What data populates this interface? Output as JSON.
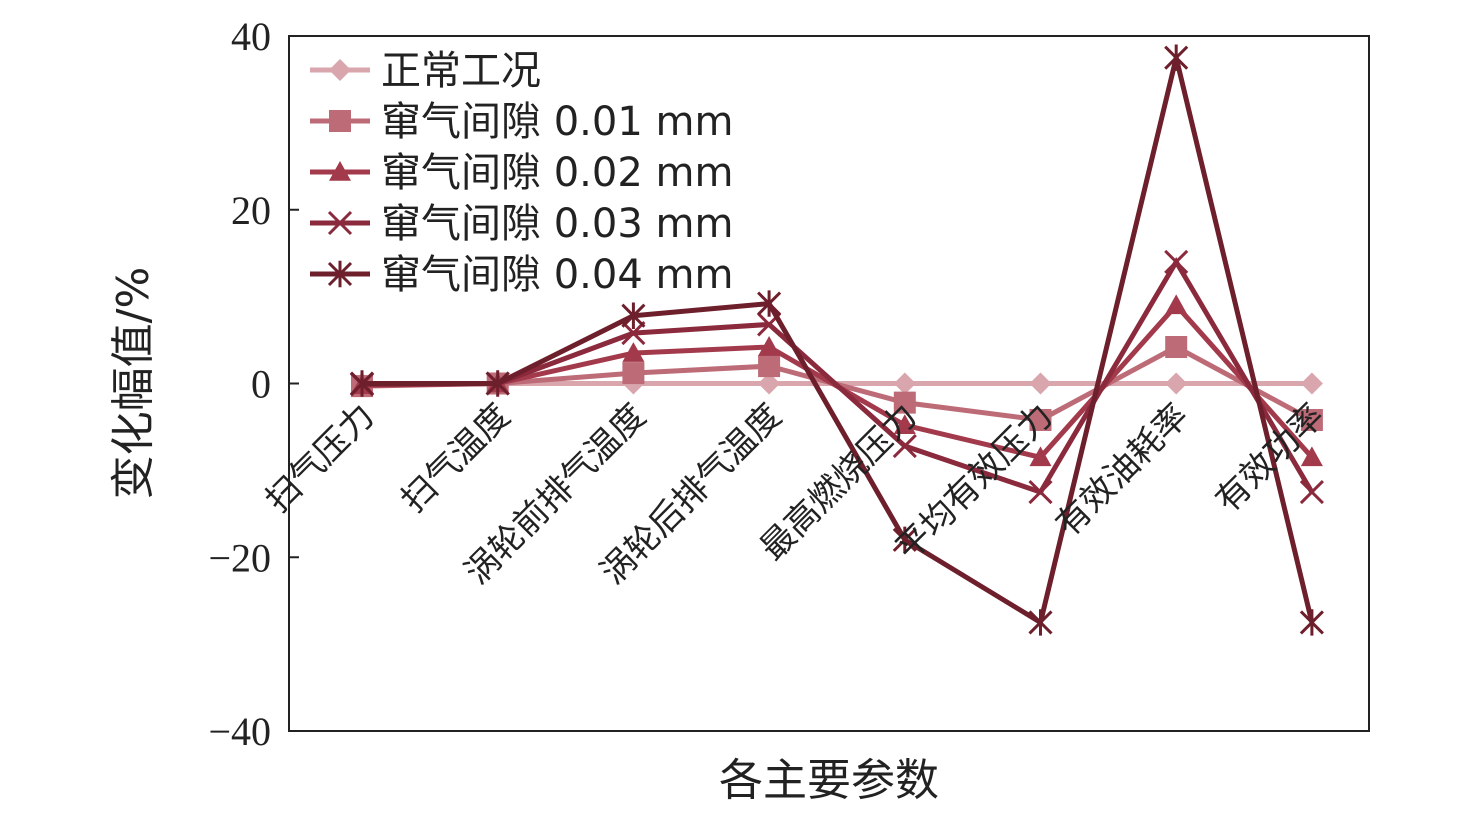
{
  "chart_data": {
    "type": "line",
    "xlabel": "各主要参数",
    "ylabel": "变化幅值/%",
    "ylim": [
      -40,
      40
    ],
    "yticks": [
      40,
      20,
      0,
      -20,
      -40
    ],
    "ytick_labels": [
      "40",
      "20",
      "0",
      "−20",
      "−40"
    ],
    "grid": false,
    "legend_position": "top-left",
    "categories": [
      "扫气压力",
      "扫气温度",
      "涡轮前排气温度",
      "涡轮后排气温度",
      "最高燃烧压力",
      "平均有效压力",
      "有效油耗率",
      "有效功率"
    ],
    "series": [
      {
        "name": "正常工况",
        "marker": "diamond",
        "color": "#d9a6ad",
        "values": [
          0,
          0,
          0,
          0,
          0,
          0,
          0,
          0
        ]
      },
      {
        "name": "窜气间隙 0.01 mm",
        "marker": "square",
        "color": "#bd6b77",
        "values": [
          -0.3,
          0,
          1.2,
          2,
          -2.2,
          -4.2,
          4.2,
          -4.2
        ]
      },
      {
        "name": "窜气间隙 0.02 mm",
        "marker": "triangle",
        "color": "#a23a4c",
        "values": [
          -0.2,
          0,
          3.5,
          4.2,
          -4.8,
          -8.5,
          9,
          -8.5
        ]
      },
      {
        "name": "窜气间隙 0.03 mm",
        "marker": "x",
        "color": "#8a2a3c",
        "values": [
          -0.1,
          0,
          5.8,
          6.8,
          -7.2,
          -12.5,
          14,
          -12.5
        ]
      },
      {
        "name": "窜气间隙 0.04 mm",
        "marker": "star",
        "color": "#6e1f2c",
        "values": [
          0,
          0,
          7.8,
          9.2,
          -18,
          -27.5,
          37.5,
          -27.5
        ]
      }
    ]
  }
}
